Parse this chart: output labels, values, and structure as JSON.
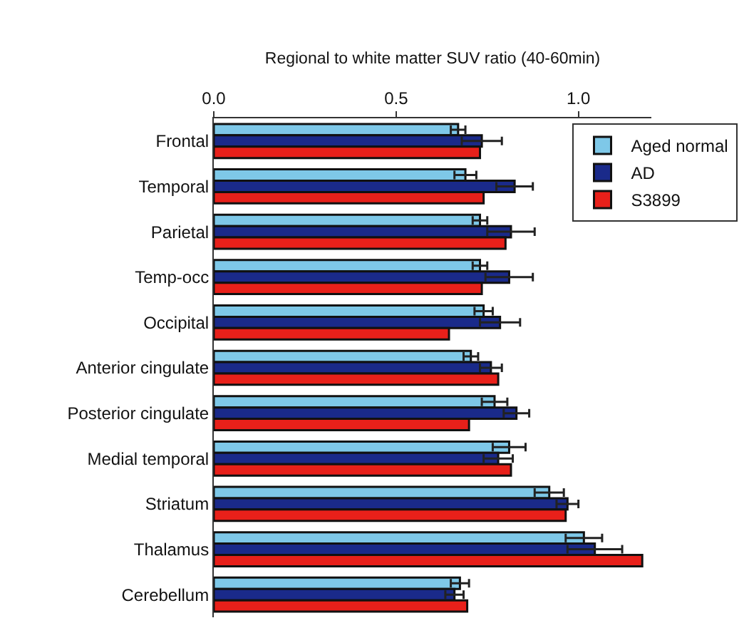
{
  "chart_data": {
    "type": "bar",
    "orientation": "horizontal",
    "xlabel": "Regional to white matter SUV ratio (40-60min)",
    "categories": [
      "Frontal",
      "Temporal",
      "Parietal",
      "Temp-occ",
      "Occipital",
      "Anterior cingulate",
      "Posterior cingulate",
      "Medial temporal",
      "Striatum",
      "Thalamus",
      "Cerebellum"
    ],
    "series": [
      {
        "name": "Aged normal",
        "color": "#7ec8e8",
        "values": [
          0.67,
          0.69,
          0.73,
          0.73,
          0.74,
          0.705,
          0.77,
          0.81,
          0.92,
          1.015,
          0.675
        ],
        "errors": [
          0.02,
          0.03,
          0.02,
          0.02,
          0.025,
          0.02,
          0.035,
          0.045,
          0.04,
          0.05,
          0.025
        ]
      },
      {
        "name": "AD",
        "color": "#1a2a8a",
        "values": [
          0.735,
          0.825,
          0.815,
          0.81,
          0.785,
          0.76,
          0.83,
          0.78,
          0.97,
          1.045,
          0.66
        ],
        "errors": [
          0.055,
          0.05,
          0.065,
          0.065,
          0.055,
          0.03,
          0.035,
          0.04,
          0.03,
          0.075,
          0.025
        ]
      },
      {
        "name": "S3899",
        "color": "#e8201a",
        "values": [
          0.73,
          0.74,
          0.8,
          0.735,
          0.645,
          0.78,
          0.7,
          0.815,
          0.965,
          1.175,
          0.695
        ]
      }
    ],
    "xlim": [
      0,
      1.2
    ],
    "xticks": [
      {
        "value": 0,
        "label": "0.0"
      },
      0.5,
      {
        "value": 1,
        "label": "1.0"
      }
    ],
    "grid": false,
    "legend": "top right"
  }
}
